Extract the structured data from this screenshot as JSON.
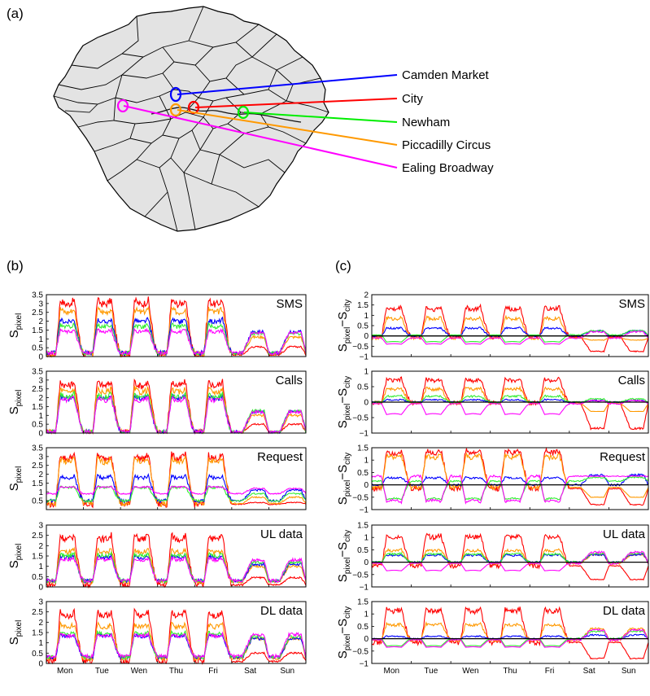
{
  "panel_labels": {
    "a": "(a)",
    "b": "(b)",
    "c": "(c)"
  },
  "map": {
    "locations": [
      {
        "name": "Camden Market",
        "color": "#0000ff"
      },
      {
        "name": "City",
        "color": "#ff0000"
      },
      {
        "name": "Newham",
        "color": "#00ee00"
      },
      {
        "name": "Piccadilly Circus",
        "color": "#ff9900"
      },
      {
        "name": "Ealing Broadway",
        "color": "#ff00ff"
      }
    ]
  },
  "colors": {
    "camden": "#0000ff",
    "city": "#ff0000",
    "newham": "#33ee33",
    "piccadilly": "#ff9900",
    "ealing": "#ff00ff"
  },
  "days": [
    "Mon",
    "Tue",
    "Wen",
    "Thu",
    "Fri",
    "Sat",
    "Sun"
  ],
  "ylabel_b": {
    "main": "S",
    "sub": "pixel"
  },
  "ylabel_c": {
    "main1": "S",
    "sub1": "pixel",
    "minus": "−",
    "main2": "S",
    "sub2": "city"
  },
  "chart_data": [
    {
      "panel": "b",
      "type": "line",
      "title": "SMS",
      "ylim": [
        0,
        3.5
      ],
      "yticks": [
        "0",
        "0.5",
        "1",
        "1.5",
        "2",
        "2.5",
        "3",
        "3.5"
      ],
      "series": [
        {
          "key": "city",
          "weekday_peak": 3.2,
          "weekend_peak": 0.55,
          "night": 0.1
        },
        {
          "key": "piccadilly",
          "weekday_peak": 2.7,
          "weekend_peak": 1.1,
          "night": 0.15
        },
        {
          "key": "camden",
          "weekday_peak": 2.1,
          "weekend_peak": 1.4,
          "night": 0.2
        },
        {
          "key": "newham",
          "weekday_peak": 1.8,
          "weekend_peak": 1.3,
          "night": 0.2
        },
        {
          "key": "ealing",
          "weekday_peak": 1.5,
          "weekend_peak": 1.35,
          "night": 0.2
        }
      ]
    },
    {
      "panel": "b",
      "type": "line",
      "title": "Calls",
      "ylim": [
        0,
        3.5
      ],
      "yticks": [
        "0",
        "0.5",
        "1",
        "1.5",
        "2",
        "2.5",
        "3",
        "3.5"
      ],
      "series": [
        {
          "key": "city",
          "weekday_peak": 2.9,
          "weekend_peak": 0.5,
          "night": 0.05
        },
        {
          "key": "piccadilly",
          "weekday_peak": 2.5,
          "weekend_peak": 1.0,
          "night": 0.05
        },
        {
          "key": "camden",
          "weekday_peak": 2.1,
          "weekend_peak": 1.2,
          "night": 0.05
        },
        {
          "key": "newham",
          "weekday_peak": 2.2,
          "weekend_peak": 1.25,
          "night": 0.05
        },
        {
          "key": "ealing",
          "weekday_peak": 2.0,
          "weekend_peak": 1.2,
          "night": 0.05
        }
      ]
    },
    {
      "panel": "b",
      "type": "line",
      "title": "Request",
      "ylim": [
        0,
        3.5
      ],
      "yticks": [
        "0.5",
        "1",
        "1.5",
        "2",
        "2.5",
        "3",
        "3.5"
      ],
      "series": [
        {
          "key": "city",
          "weekday_peak": 3.1,
          "weekend_peak": 0.4,
          "night": 0.3
        },
        {
          "key": "piccadilly",
          "weekday_peak": 2.9,
          "weekend_peak": 0.7,
          "night": 0.35
        },
        {
          "key": "camden",
          "weekday_peak": 1.9,
          "weekend_peak": 1.1,
          "night": 0.5
        },
        {
          "key": "newham",
          "weekday_peak": 1.3,
          "weekend_peak": 0.9,
          "night": 0.5
        },
        {
          "key": "ealing",
          "weekday_peak": 1.3,
          "weekend_peak": 1.2,
          "night": 0.9
        }
      ]
    },
    {
      "panel": "b",
      "type": "line",
      "title": "UL data",
      "ylim": [
        0,
        3
      ],
      "yticks": [
        "0",
        "0.5",
        "1",
        "1.5",
        "2",
        "2.5",
        "3"
      ],
      "series": [
        {
          "key": "city",
          "weekday_peak": 2.5,
          "weekend_peak": 0.45,
          "night": 0.1
        },
        {
          "key": "piccadilly",
          "weekday_peak": 1.8,
          "weekend_peak": 1.0,
          "night": 0.25
        },
        {
          "key": "camden",
          "weekday_peak": 1.5,
          "weekend_peak": 1.1,
          "night": 0.3
        },
        {
          "key": "newham",
          "weekday_peak": 1.6,
          "weekend_peak": 1.2,
          "night": 0.3
        },
        {
          "key": "ealing",
          "weekday_peak": 1.4,
          "weekend_peak": 1.3,
          "night": 0.3
        }
      ]
    },
    {
      "panel": "b",
      "type": "line",
      "title": "DL data",
      "ylim": [
        0,
        3
      ],
      "yticks": [
        "0",
        "0.5",
        "1",
        "1.5",
        "2",
        "2.5",
        "3"
      ],
      "series": [
        {
          "key": "city",
          "weekday_peak": 2.5,
          "weekend_peak": 0.5,
          "night": 0.1
        },
        {
          "key": "piccadilly",
          "weekday_peak": 1.9,
          "weekend_peak": 1.2,
          "night": 0.25
        },
        {
          "key": "camden",
          "weekday_peak": 1.4,
          "weekend_peak": 1.2,
          "night": 0.3
        },
        {
          "key": "newham",
          "weekday_peak": 1.5,
          "weekend_peak": 1.3,
          "night": 0.3
        },
        {
          "key": "ealing",
          "weekday_peak": 1.4,
          "weekend_peak": 1.4,
          "night": 0.35
        }
      ]
    },
    {
      "panel": "c",
      "type": "line",
      "title": "SMS",
      "ylim": [
        -1,
        2
      ],
      "yticks": [
        "−1",
        "−0.5",
        "0",
        "0.5",
        "1",
        "1.5",
        "2"
      ],
      "series": [
        {
          "key": "city",
          "weekday_peak": 1.4,
          "weekend_peak": -0.75,
          "night": -0.05
        },
        {
          "key": "piccadilly",
          "weekday_peak": 0.9,
          "weekend_peak": -0.2,
          "night": -0.1
        },
        {
          "key": "camden",
          "weekday_peak": 0.4,
          "weekend_peak": 0.25,
          "night": 0.0
        },
        {
          "key": "newham",
          "weekday_peak": -0.3,
          "weekend_peak": 0.25,
          "night": 0.05
        },
        {
          "key": "ealing",
          "weekday_peak": -0.4,
          "weekend_peak": 0.2,
          "night": -0.1
        }
      ]
    },
    {
      "panel": "c",
      "type": "line",
      "title": "Calls",
      "ylim": [
        -1,
        1
      ],
      "yticks": [
        "−1",
        "−0.5",
        "0",
        "0.5",
        "1"
      ],
      "series": [
        {
          "key": "city",
          "weekday_peak": 0.75,
          "weekend_peak": -0.85,
          "night": -0.02
        },
        {
          "key": "piccadilly",
          "weekday_peak": 0.45,
          "weekend_peak": -0.3,
          "night": -0.03
        },
        {
          "key": "camden",
          "weekday_peak": 0.08,
          "weekend_peak": 0.05,
          "night": 0.0
        },
        {
          "key": "newham",
          "weekday_peak": 0.2,
          "weekend_peak": 0.1,
          "night": 0.0
        },
        {
          "key": "ealing",
          "weekday_peak": -0.4,
          "weekend_peak": 0.05,
          "night": -0.05
        }
      ]
    },
    {
      "panel": "c",
      "type": "line",
      "title": "Request",
      "ylim": [
        -1,
        1.5
      ],
      "yticks": [
        "−1",
        "−0.5",
        "0",
        "0.5",
        "1",
        "1.5"
      ],
      "series": [
        {
          "key": "city",
          "weekday_peak": 1.4,
          "weekend_peak": -0.8,
          "night": -0.15
        },
        {
          "key": "piccadilly",
          "weekday_peak": 1.2,
          "weekend_peak": -0.5,
          "night": -0.1
        },
        {
          "key": "camden",
          "weekday_peak": 0.3,
          "weekend_peak": 0.4,
          "night": 0.0
        },
        {
          "key": "newham",
          "weekday_peak": -0.6,
          "weekend_peak": 0.3,
          "night": 0.15
        },
        {
          "key": "ealing",
          "weekday_peak": -0.7,
          "weekend_peak": 0.35,
          "night": 0.35
        }
      ]
    },
    {
      "panel": "c",
      "type": "line",
      "title": "UL data",
      "ylim": [
        -1,
        1.5
      ],
      "yticks": [
        "−1",
        "−0.5",
        "0",
        "0.5",
        "1",
        "1.5"
      ],
      "series": [
        {
          "key": "city",
          "weekday_peak": 1.1,
          "weekend_peak": -0.7,
          "night": -0.15
        },
        {
          "key": "piccadilly",
          "weekday_peak": 0.5,
          "weekend_peak": 0.3,
          "night": -0.05
        },
        {
          "key": "camden",
          "weekday_peak": 0.3,
          "weekend_peak": 0.3,
          "night": 0.0
        },
        {
          "key": "newham",
          "weekday_peak": 0.35,
          "weekend_peak": 0.35,
          "night": 0.0
        },
        {
          "key": "ealing",
          "weekday_peak": -0.35,
          "weekend_peak": 0.4,
          "night": -0.05
        }
      ]
    },
    {
      "panel": "c",
      "type": "line",
      "title": "DL data",
      "ylim": [
        -1,
        1.5
      ],
      "yticks": [
        "−1",
        "−0.5",
        "0",
        "0.5",
        "1",
        "1.5"
      ],
      "series": [
        {
          "key": "city",
          "weekday_peak": 1.2,
          "weekend_peak": -0.8,
          "night": -0.15
        },
        {
          "key": "piccadilly",
          "weekday_peak": 0.6,
          "weekend_peak": 0.4,
          "night": -0.05
        },
        {
          "key": "camden",
          "weekday_peak": 0.1,
          "weekend_peak": 0.15,
          "night": 0.0
        },
        {
          "key": "newham",
          "weekday_peak": -0.3,
          "weekend_peak": 0.3,
          "night": 0.0
        },
        {
          "key": "ealing",
          "weekday_peak": -0.35,
          "weekend_peak": 0.35,
          "night": -0.05
        }
      ]
    }
  ]
}
